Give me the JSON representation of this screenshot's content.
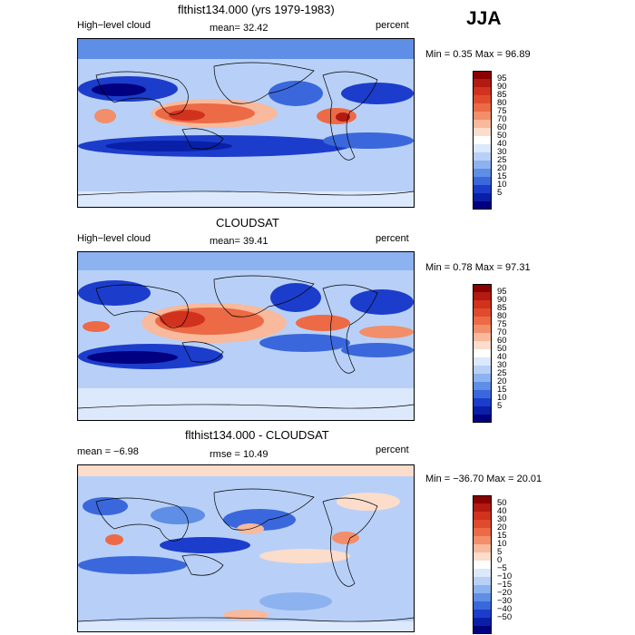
{
  "season": "JJA",
  "panels": [
    {
      "title": "flthist134.000 (yrs 1979-1983)",
      "left_label": "High−level cloud",
      "stat_label": "mean=  32.42",
      "units": "percent",
      "minmax": "Min =   0.35  Max =   96.89",
      "colorbar_ticks": [
        "95",
        "90",
        "85",
        "80",
        "75",
        "70",
        "60",
        "50",
        "40",
        "30",
        "25",
        "20",
        "15",
        "10",
        "5"
      ],
      "colorbar_colors": [
        "#8b0000",
        "#b21a12",
        "#d0321e",
        "#e04b2e",
        "#ec6a45",
        "#f28e6a",
        "#f8b99c",
        "#fcdccb",
        "#ffffff",
        "#dce8fb",
        "#b8d0f7",
        "#8db2f0",
        "#5e8ee5",
        "#3a68dc",
        "#1c3dcb",
        "#0a1fa8",
        "#000080"
      ]
    },
    {
      "title": "CLOUDSAT",
      "left_label": "High−level cloud",
      "stat_label": "mean=  39.41",
      "units": "percent",
      "minmax": "Min =   0.78  Max =   97.31",
      "colorbar_ticks": [
        "95",
        "90",
        "85",
        "80",
        "75",
        "70",
        "60",
        "50",
        "40",
        "30",
        "25",
        "20",
        "15",
        "10",
        "5"
      ],
      "colorbar_colors": [
        "#8b0000",
        "#b21a12",
        "#d0321e",
        "#e04b2e",
        "#ec6a45",
        "#f28e6a",
        "#f8b99c",
        "#fcdccb",
        "#ffffff",
        "#dce8fb",
        "#b8d0f7",
        "#8db2f0",
        "#5e8ee5",
        "#3a68dc",
        "#1c3dcb",
        "#0a1fa8",
        "#000080"
      ]
    },
    {
      "title": "flthist134.000 - CLOUDSAT",
      "left_label": "mean =   −6.98",
      "stat_label": "rmse =  10.49",
      "units": "percent",
      "minmax": "Min = −36.70  Max =   20.01",
      "colorbar_ticks": [
        "50",
        "40",
        "30",
        "20",
        "15",
        "10",
        "5",
        "0",
        "−5",
        "−10",
        "−15",
        "−20",
        "−30",
        "−40",
        "−50"
      ],
      "colorbar_colors": [
        "#8b0000",
        "#b21a12",
        "#d0321e",
        "#e04b2e",
        "#ec6a45",
        "#f28e6a",
        "#f8b99c",
        "#fcdccb",
        "#ffffff",
        "#dce8fb",
        "#b8d0f7",
        "#8db2f0",
        "#5e8ee5",
        "#3a68dc",
        "#1c3dcb",
        "#0a1fa8",
        "#000080"
      ]
    }
  ]
}
